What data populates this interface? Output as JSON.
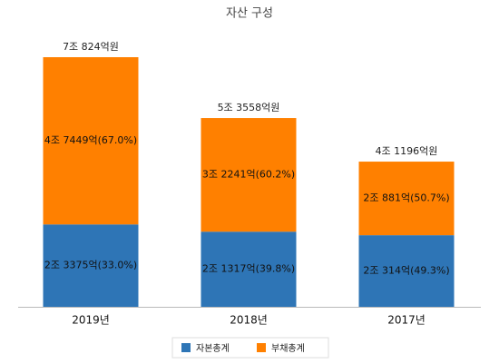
{
  "chart_data": {
    "type": "bar",
    "stacked": true,
    "title": "자산 구성",
    "categories": [
      "2019년",
      "2018년",
      "2017년"
    ],
    "series": [
      {
        "name": "자본총계",
        "color": "#2e75b6",
        "values": [
          23375,
          21317,
          20314
        ],
        "value_labels": [
          "2조 3375억(33.0%)",
          "2조 1317억(39.8%)",
          "2조 314억(49.3%)"
        ]
      },
      {
        "name": "부채총계",
        "color": "#ff8000",
        "values": [
          47449,
          32241,
          20881
        ],
        "value_labels": [
          "4조 7449억(67.0%)",
          "3조 2241억(60.2%)",
          "2조 881억(50.7%)"
        ]
      }
    ],
    "totals": [
      70824,
      53558,
      41196
    ],
    "total_labels": [
      "7조 824억원",
      "5조 3558억원",
      "4조 1196억원"
    ],
    "legend": "bottom"
  }
}
